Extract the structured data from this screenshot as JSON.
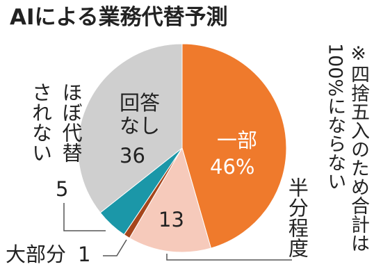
{
  "chart_data": {
    "type": "pie",
    "title": "AIによる業務代替予測",
    "note": "※四捨五入のため合計は100%にならない",
    "categories": [
      "一部",
      "半分程度",
      "大部分",
      "ほぼ代替されない",
      "回答なし"
    ],
    "values": [
      46,
      13,
      1,
      5,
      36
    ],
    "value_labels": [
      "46%",
      "13",
      "1",
      "5",
      "36"
    ],
    "colors": [
      "#ef7a2c",
      "#f6cabb",
      "#a5461c",
      "#1b97a8",
      "#cfcfcf"
    ]
  }
}
